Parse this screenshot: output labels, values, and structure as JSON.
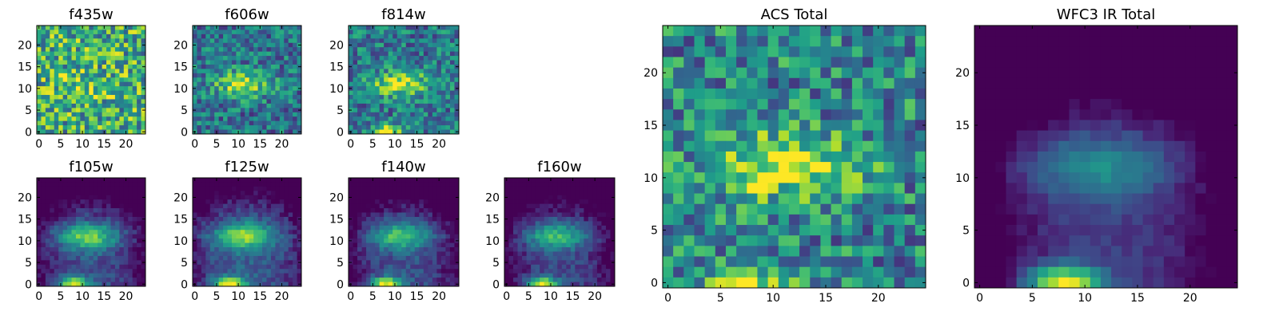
{
  "colormap": "viridis",
  "chart_data": [
    {
      "type": "heatmap",
      "title": "f435w",
      "xticks": [
        "0",
        "5",
        "10",
        "15",
        "20"
      ],
      "yticks": [
        "0",
        "5",
        "10",
        "15",
        "20"
      ],
      "xlim": [
        0,
        24
      ],
      "ylim": [
        0,
        24
      ],
      "grid": false
    },
    {
      "type": "heatmap",
      "title": "f606w",
      "xticks": [
        "0",
        "5",
        "10",
        "15",
        "20"
      ],
      "yticks": [
        "0",
        "5",
        "10",
        "15",
        "20"
      ],
      "xlim": [
        0,
        24
      ],
      "ylim": [
        0,
        24
      ],
      "grid": false
    },
    {
      "type": "heatmap",
      "title": "f814w",
      "xticks": [
        "0",
        "5",
        "10",
        "15",
        "20"
      ],
      "yticks": [
        "0",
        "5",
        "10",
        "15",
        "20"
      ],
      "xlim": [
        0,
        24
      ],
      "ylim": [
        0,
        24
      ],
      "grid": false
    },
    {
      "type": "heatmap",
      "title": "f105w",
      "xticks": [
        "0",
        "5",
        "10",
        "15",
        "20"
      ],
      "yticks": [
        "0",
        "5",
        "10",
        "15",
        "20"
      ],
      "xlim": [
        0,
        24
      ],
      "ylim": [
        0,
        24
      ],
      "grid": false
    },
    {
      "type": "heatmap",
      "title": "f125w",
      "xticks": [
        "0",
        "5",
        "10",
        "15",
        "20"
      ],
      "yticks": [
        "0",
        "5",
        "10",
        "15",
        "20"
      ],
      "xlim": [
        0,
        24
      ],
      "ylim": [
        0,
        24
      ],
      "grid": false
    },
    {
      "type": "heatmap",
      "title": "f140w",
      "xticks": [
        "0",
        "5",
        "10",
        "15",
        "20"
      ],
      "yticks": [
        "0",
        "5",
        "10",
        "15",
        "20"
      ],
      "xlim": [
        0,
        24
      ],
      "ylim": [
        0,
        24
      ],
      "grid": false
    },
    {
      "type": "heatmap",
      "title": "f160w",
      "xticks": [
        "0",
        "5",
        "10",
        "15",
        "20"
      ],
      "yticks": [
        "0",
        "5",
        "10",
        "15",
        "20"
      ],
      "xlim": [
        0,
        24
      ],
      "ylim": [
        0,
        24
      ],
      "grid": false
    },
    {
      "type": "heatmap",
      "title": "ACS Total",
      "xticks": [
        "0",
        "5",
        "10",
        "15",
        "20"
      ],
      "yticks": [
        "0",
        "5",
        "10",
        "15",
        "20"
      ],
      "xlim": [
        0,
        24
      ],
      "ylim": [
        0,
        24
      ],
      "grid": false
    },
    {
      "type": "heatmap",
      "title": "WFC3 IR Total",
      "xticks": [
        "0",
        "5",
        "10",
        "15",
        "20"
      ],
      "yticks": [
        "0",
        "5",
        "10",
        "15",
        "20"
      ],
      "xlim": [
        0,
        24
      ],
      "ylim": [
        0,
        24
      ],
      "grid": false
    }
  ]
}
